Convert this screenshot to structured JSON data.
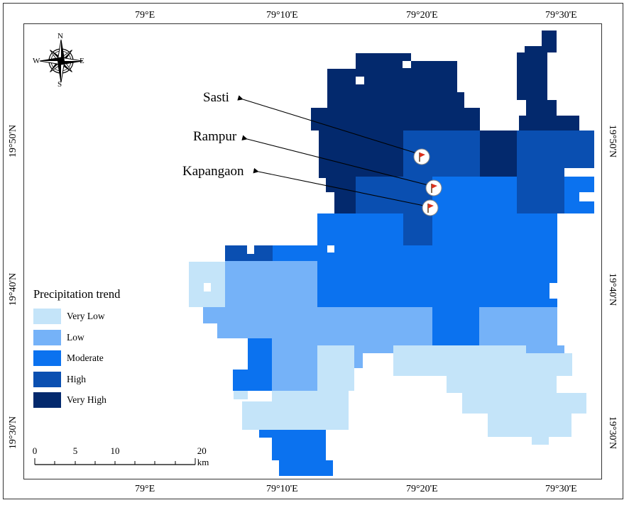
{
  "map": {
    "legend": {
      "title": "Precipitation trend",
      "classes": [
        {
          "label": "Very Low",
          "color": "#c4e4f9"
        },
        {
          "label": "Low",
          "color": "#75b2f8"
        },
        {
          "label": "Moderate",
          "color": "#0b72ef"
        },
        {
          "label": "High",
          "color": "#0a4fb1"
        },
        {
          "label": "Very High",
          "color": "#03296d"
        }
      ]
    },
    "places": [
      {
        "name": "Sasti",
        "icon": "red-flag-icon"
      },
      {
        "name": "Rampur",
        "icon": "red-flag-icon"
      },
      {
        "name": "Kapangaon",
        "icon": "red-flag-icon"
      }
    ],
    "graticule": {
      "longitudes": [
        "79°E",
        "79°10'E",
        "79°20'E",
        "79°30'E"
      ],
      "latitudes": [
        "19°50'N",
        "19°40'N",
        "19°30'N"
      ]
    },
    "scale_bar": {
      "ticks": [
        "0",
        "5",
        "10",
        "20 km"
      ]
    },
    "compass": {
      "icon": "compass-rose-icon",
      "north": "N",
      "south": "S",
      "east": "E",
      "west": "W"
    }
  }
}
